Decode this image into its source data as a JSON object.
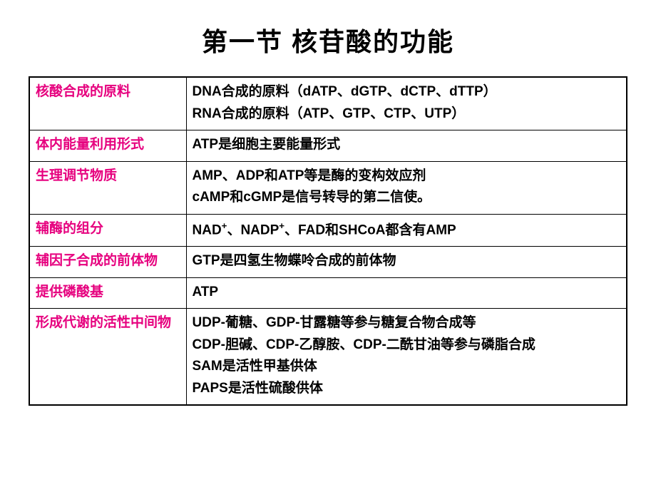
{
  "title": "第一节 核苷酸的功能",
  "colors": {
    "label": "#e6007e",
    "content": "#000000",
    "border": "#000000",
    "background": "#ffffff"
  },
  "table": {
    "type": "table",
    "label_column_width": 220,
    "font_family": "SimHei",
    "rows": [
      {
        "label": "核酸合成的原料",
        "lines": [
          "DNA合成的原料（dATP、dGTP、dCTP、dTTP）",
          "RNA合成的原料（ATP、GTP、CTP、UTP）"
        ]
      },
      {
        "label": "体内能量利用形式",
        "lines": [
          "ATP是细胞主要能量形式"
        ]
      },
      {
        "label": "生理调节物质",
        "lines": [
          "AMP、ADP和ATP等是酶的变构效应剂",
          "cAMP和cGMP是信号转导的第二信使。"
        ]
      },
      {
        "label": "辅酶的组分",
        "lines_html": [
          "NAD<sup>+</sup>、NADP<sup>+</sup>、FAD和SHCoA都含有AMP"
        ]
      },
      {
        "label": "辅因子合成的前体物",
        "lines": [
          "GTP是四氢生物蝶呤合成的前体物"
        ]
      },
      {
        "label": "提供磷酸基",
        "lines": [
          "ATP"
        ]
      },
      {
        "label": "形成代谢的活性中间物",
        "lines": [
          "UDP-葡糖、GDP-甘露糖等参与糖复合物合成等",
          "CDP-胆碱、CDP-乙醇胺、CDP-二酰甘油等参与磷脂合成",
          "SAM是活性甲基供体",
          "PAPS是活性硫酸供体"
        ]
      }
    ]
  }
}
